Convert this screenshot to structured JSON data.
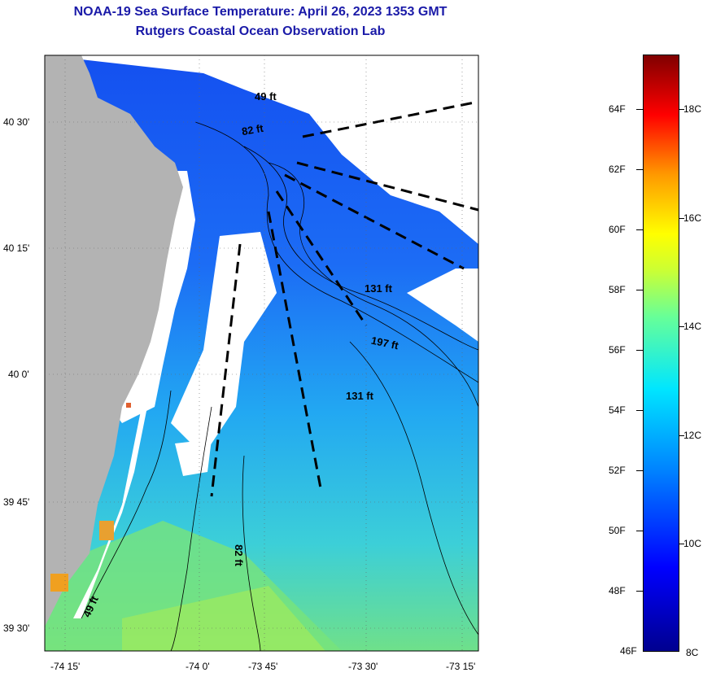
{
  "title": {
    "line1": "NOAA-19 Sea Surface Temperature:  April 26, 2023 1353 GMT",
    "line2": "Rutgers Coastal Ocean Observation Lab"
  },
  "axes": {
    "lat_labels": [
      "40 30'",
      "40 15'",
      "40 0'",
      "39 45'",
      "39 30'"
    ],
    "lon_labels": [
      "-74 15'",
      "-74 0'",
      "-73 45'",
      "-73 30'",
      "-73 15'"
    ]
  },
  "depth_labels": [
    "49 ft",
    "82 ft",
    "131 ft",
    "197 ft",
    "131 ft",
    "82 ft",
    "49 ft"
  ],
  "colorbar": {
    "fahrenheit": [
      "64F",
      "62F",
      "60F",
      "58F",
      "56F",
      "54F",
      "52F",
      "50F",
      "48F",
      "46F"
    ],
    "celsius": [
      "18C",
      "16C",
      "14C",
      "12C",
      "10C",
      "8C"
    ]
  },
  "colors": {
    "title": "#1a1aa8",
    "land": "#b3b3b3",
    "cloud": "#ffffff",
    "cold_water": "#1a5cff",
    "mid_water": "#22aaf5",
    "warm_water": "#7fe88a"
  }
}
